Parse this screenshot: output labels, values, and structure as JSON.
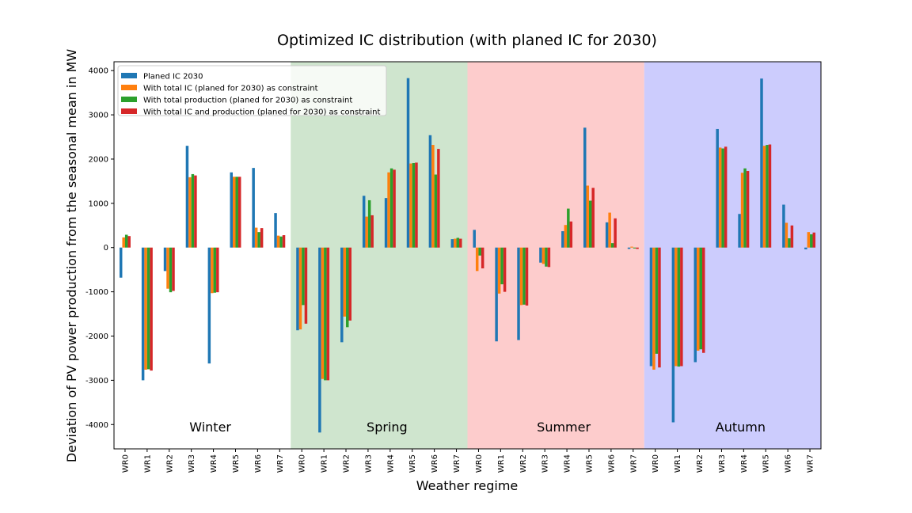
{
  "chart_data": {
    "type": "bar",
    "title": "Optimized IC distribution (with planed IC for 2030)",
    "xlabel": "Weather regime",
    "ylabel": "Deviation of PV power production from the seasonal mean in MW",
    "ylim": [
      -4550,
      4200
    ],
    "yticks": [
      -4000,
      -3000,
      -2000,
      -1000,
      0,
      1000,
      2000,
      3000,
      4000
    ],
    "legend_position": "top-left",
    "categories": [
      "WR0",
      "WR1",
      "WR2",
      "WR3",
      "WR4",
      "WR5",
      "WR6",
      "WR7",
      "WR0",
      "WR1",
      "WR2",
      "WR3",
      "WR4",
      "WR5",
      "WR6",
      "WR7",
      "WR0",
      "WR1",
      "WR2",
      "WR3",
      "WR4",
      "WR5",
      "WR6",
      "WR7",
      "WR0",
      "WR1",
      "WR2",
      "WR3",
      "WR4",
      "WR5",
      "WR6",
      "WR7"
    ],
    "seasons": [
      {
        "label": "Winter",
        "background": "#ffffff"
      },
      {
        "label": "Spring",
        "background": "#cfe5ce"
      },
      {
        "label": "Summer",
        "background": "#fdcccc"
      },
      {
        "label": "Autumn",
        "background": "#ccccfd"
      }
    ],
    "series": [
      {
        "name": "Planed IC 2030",
        "color": "#1f77b4",
        "values": [
          -680,
          -3000,
          -530,
          2300,
          -2620,
          1700,
          1800,
          780,
          -1870,
          -4180,
          -2140,
          1170,
          1120,
          3830,
          2540,
          190,
          400,
          -2120,
          -2090,
          -340,
          370,
          2710,
          570,
          -30,
          -2680,
          -3950,
          -2590,
          2680,
          760,
          3820,
          970,
          -40
        ]
      },
      {
        "name": "With total IC (planed for 2030) as constraint",
        "color": "#ff7f0e",
        "values": [
          230,
          -2760,
          -930,
          1590,
          -1030,
          1600,
          450,
          270,
          -1850,
          -2970,
          -1560,
          700,
          1700,
          1900,
          2320,
          200,
          -530,
          -1040,
          -1300,
          -370,
          510,
          1400,
          790,
          20,
          -2760,
          -2680,
          -2330,
          2260,
          1690,
          2300,
          560,
          350
        ]
      },
      {
        "name": "With total production (planed for 2030) as constraint",
        "color": "#2ca02c",
        "values": [
          290,
          -2750,
          -1010,
          1660,
          -1020,
          1600,
          350,
          250,
          -1300,
          -3000,
          -1800,
          1070,
          1790,
          1910,
          1650,
          220,
          -180,
          -830,
          -1290,
          -430,
          880,
          1060,
          100,
          -20,
          -2400,
          -2690,
          -2300,
          2240,
          1790,
          2320,
          210,
          300
        ]
      },
      {
        "name": "With total IC and production (planed for 2030) as constraint",
        "color": "#d62728",
        "values": [
          260,
          -2780,
          -980,
          1630,
          -1010,
          1600,
          440,
          280,
          -1720,
          -3000,
          -1650,
          730,
          1760,
          1920,
          2230,
          200,
          -470,
          -1000,
          -1310,
          -440,
          590,
          1350,
          660,
          -30,
          -2710,
          -2680,
          -2380,
          2280,
          1730,
          2330,
          500,
          340
        ]
      }
    ]
  }
}
